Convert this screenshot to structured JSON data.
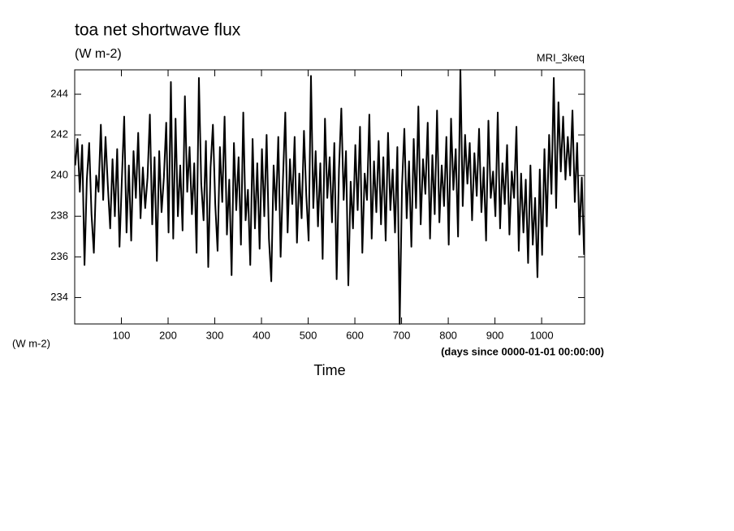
{
  "chart_data": {
    "type": "line",
    "title": "toa net shortwave flux",
    "subtitle": "(W m-2)",
    "dataset_label": "MRI_3keq",
    "y_units_label": "(W m-2)",
    "x_units_label": "(days since 0000-01-01 00:00:00)",
    "x_label": "Time",
    "color": "#000000",
    "xlim": [
      0,
      1092
    ],
    "ylim": [
      232.7,
      245.2
    ],
    "xticks": [
      100,
      200,
      300,
      400,
      500,
      600,
      700,
      800,
      900,
      1000
    ],
    "yticks": [
      234,
      236,
      238,
      240,
      242,
      244
    ],
    "x": [
      1,
      6,
      11,
      16,
      21,
      26,
      31,
      36,
      41,
      46,
      51,
      56,
      61,
      66,
      71,
      76,
      81,
      86,
      91,
      96,
      101,
      106,
      111,
      116,
      121,
      126,
      131,
      136,
      141,
      146,
      151,
      156,
      161,
      166,
      171,
      176,
      181,
      186,
      191,
      196,
      201,
      206,
      211,
      216,
      221,
      226,
      231,
      236,
      241,
      246,
      251,
      256,
      261,
      266,
      271,
      276,
      281,
      286,
      291,
      296,
      301,
      306,
      311,
      316,
      321,
      326,
      331,
      336,
      341,
      346,
      351,
      356,
      361,
      366,
      371,
      376,
      381,
      386,
      391,
      396,
      401,
      406,
      411,
      416,
      421,
      426,
      431,
      436,
      441,
      446,
      451,
      456,
      461,
      466,
      471,
      476,
      481,
      486,
      491,
      496,
      501,
      506,
      511,
      516,
      521,
      526,
      531,
      536,
      541,
      546,
      551,
      556,
      561,
      566,
      571,
      576,
      581,
      586,
      591,
      596,
      601,
      606,
      611,
      616,
      621,
      626,
      631,
      636,
      641,
      646,
      651,
      656,
      661,
      666,
      671,
      676,
      681,
      686,
      691,
      696,
      701,
      706,
      711,
      716,
      721,
      726,
      731,
      736,
      741,
      746,
      751,
      756,
      761,
      766,
      771,
      776,
      781,
      786,
      791,
      796,
      801,
      806,
      811,
      816,
      821,
      826,
      831,
      836,
      841,
      846,
      851,
      856,
      861,
      866,
      871,
      876,
      881,
      886,
      891,
      896,
      901,
      906,
      911,
      916,
      921,
      926,
      931,
      936,
      941,
      946,
      951,
      956,
      961,
      966,
      971,
      976,
      981,
      986,
      991,
      996,
      1001,
      1006,
      1011,
      1016,
      1021,
      1026,
      1031,
      1036,
      1041,
      1046,
      1051,
      1056,
      1061,
      1066,
      1071,
      1076,
      1081,
      1086,
      1091
    ],
    "values": [
      240.5,
      241.8,
      239.2,
      241.5,
      235.6,
      239.8,
      241.6,
      238.1,
      236.2,
      240.0,
      239.2,
      242.5,
      238.8,
      241.9,
      239.5,
      237.4,
      240.8,
      238.0,
      241.3,
      236.5,
      239.8,
      242.9,
      237.2,
      240.5,
      236.8,
      241.2,
      238.9,
      242.1,
      237.9,
      240.4,
      238.4,
      239.9,
      243.0,
      237.6,
      240.9,
      235.8,
      241.2,
      238.2,
      239.9,
      242.6,
      237.2,
      244.6,
      236.9,
      242.8,
      238.0,
      240.5,
      237.3,
      243.9,
      239.2,
      241.4,
      238.1,
      240.6,
      236.2,
      244.8,
      239.6,
      237.8,
      241.7,
      235.5,
      240.4,
      242.5,
      238.6,
      236.3,
      241.4,
      238.7,
      242.9,
      237.1,
      239.8,
      235.1,
      241.6,
      238.3,
      240.9,
      236.6,
      243.1,
      237.8,
      239.3,
      235.6,
      241.8,
      237.4,
      240.6,
      236.4,
      241.3,
      238.0,
      242.0,
      236.9,
      234.8,
      240.5,
      238.3,
      241.9,
      236.0,
      239.8,
      243.1,
      237.2,
      240.8,
      238.6,
      241.9,
      236.7,
      240.1,
      237.9,
      242.2,
      239.0,
      236.8,
      244.9,
      238.4,
      241.2,
      237.5,
      240.6,
      235.9,
      242.8,
      238.9,
      240.9,
      237.7,
      241.6,
      234.9,
      240.3,
      243.3,
      238.8,
      241.2,
      234.6,
      239.7,
      237.4,
      241.5,
      238.3,
      242.4,
      236.2,
      240.1,
      238.8,
      243.0,
      236.9,
      240.7,
      238.2,
      241.7,
      237.6,
      240.9,
      236.8,
      242.1,
      238.3,
      240.3,
      237.2,
      241.4,
      232.7,
      239.5,
      242.3,
      237.9,
      240.7,
      236.5,
      241.8,
      238.4,
      243.4,
      237.6,
      240.8,
      239.1,
      242.6,
      236.9,
      241.0,
      238.1,
      243.2,
      237.7,
      240.5,
      238.5,
      241.9,
      236.6,
      242.8,
      239.3,
      241.3,
      237.0,
      245.2,
      238.5,
      242.0,
      239.6,
      241.6,
      237.8,
      241.1,
      239.0,
      242.3,
      238.2,
      240.4,
      236.8,
      242.7,
      238.9,
      240.2,
      238.0,
      243.1,
      237.4,
      240.6,
      238.6,
      241.5,
      237.1,
      240.2,
      238.9,
      242.4,
      236.3,
      240.1,
      237.2,
      239.8,
      235.7,
      240.5,
      236.6,
      238.9,
      235.0,
      240.3,
      236.1,
      241.3,
      237.5,
      242.0,
      239.1,
      244.8,
      238.4,
      243.6,
      240.2,
      242.9,
      239.8,
      241.9,
      240.0,
      243.2,
      238.7,
      241.6,
      237.1,
      239.9,
      236.1
    ]
  }
}
